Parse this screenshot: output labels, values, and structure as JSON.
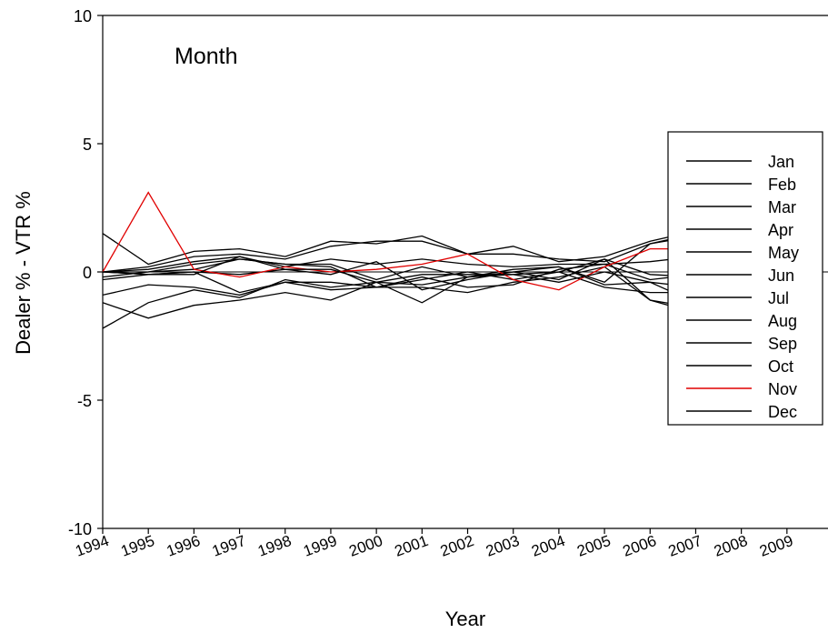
{
  "chart_data": {
    "type": "line",
    "title": "",
    "annotation": "Month",
    "xlabel": "Year",
    "ylabel": "Dealer % - VTR %",
    "xlim": [
      1994,
      2009.9
    ],
    "ylim": [
      -10,
      10
    ],
    "x_ticks": [
      1994,
      1995,
      1996,
      1997,
      1998,
      1999,
      2000,
      2001,
      2002,
      2003,
      2004,
      2005,
      2006,
      2007,
      2008,
      2009
    ],
    "y_ticks": [
      -10,
      -5,
      0,
      5,
      10
    ],
    "grid": false,
    "legend_position": "right",
    "reference_line": 0,
    "x": [
      1994,
      1995,
      1996,
      1997,
      1998,
      1999,
      2000,
      2001,
      2002,
      2003,
      2004,
      2005,
      2006,
      2007
    ],
    "series": [
      {
        "name": "Jan",
        "color": "#000000",
        "values": [
          1.5,
          0.3,
          0.8,
          0.9,
          0.6,
          1.2,
          1.1,
          1.4,
          0.7,
          1.0,
          0.4,
          0.6,
          1.2,
          1.6
        ]
      },
      {
        "name": "Feb",
        "color": "#000000",
        "values": [
          0.0,
          0.2,
          0.6,
          0.7,
          0.5,
          1.0,
          1.2,
          1.2,
          0.7,
          0.7,
          0.5,
          0.4,
          1.1,
          1.5
        ]
      },
      {
        "name": "Mar",
        "color": "#000000",
        "values": [
          0.0,
          0.1,
          0.4,
          0.6,
          0.2,
          0.5,
          0.3,
          0.5,
          0.3,
          0.2,
          0.3,
          0.3,
          0.4,
          0.6
        ]
      },
      {
        "name": "Apr",
        "color": "#000000",
        "values": [
          -0.2,
          0.0,
          0.3,
          0.5,
          0.3,
          0.3,
          -0.3,
          0.2,
          -0.2,
          0.1,
          0.2,
          -0.4,
          1.1,
          1.4
        ]
      },
      {
        "name": "May",
        "color": "#000000",
        "values": [
          -0.9,
          -0.5,
          -0.6,
          -0.9,
          -0.4,
          -0.7,
          -0.6,
          -0.2,
          -0.6,
          -0.5,
          0.1,
          0.3,
          -0.3,
          -0.1
        ]
      },
      {
        "name": "Jun",
        "color": "#000000",
        "values": [
          -2.2,
          -1.2,
          -0.7,
          -1.0,
          -0.3,
          -0.6,
          -0.4,
          -0.5,
          -0.2,
          -0.1,
          0.0,
          -0.6,
          -0.8,
          -0.8
        ]
      },
      {
        "name": "Jul",
        "color": "#000000",
        "values": [
          -1.2,
          -1.8,
          -1.3,
          -1.1,
          -0.8,
          -1.1,
          -0.4,
          -1.2,
          -0.2,
          0.0,
          -0.3,
          0.5,
          -1.1,
          -1.6
        ]
      },
      {
        "name": "Aug",
        "color": "#000000",
        "values": [
          0.0,
          -0.1,
          0.0,
          -0.1,
          0.1,
          -0.1,
          0.4,
          -0.7,
          -0.3,
          0.0,
          0.2,
          -0.5,
          -0.4,
          -1.2
        ]
      },
      {
        "name": "Sep",
        "color": "#000000",
        "values": [
          -0.3,
          -0.1,
          0.0,
          -0.8,
          -0.4,
          -0.4,
          -0.6,
          -0.6,
          -0.8,
          -0.4,
          -0.2,
          0.2,
          -1.1,
          -1.4
        ]
      },
      {
        "name": "Oct",
        "color": "#000000",
        "values": [
          0.0,
          0.0,
          0.1,
          0.5,
          0.3,
          0.2,
          -0.6,
          -0.3,
          0.0,
          -0.3,
          0.0,
          0.5,
          -0.1,
          -0.2
        ]
      },
      {
        "name": "Nov",
        "color": "#e00000",
        "values": [
          0.0,
          3.1,
          0.1,
          -0.2,
          0.2,
          0.0,
          0.1,
          0.3,
          0.7,
          -0.3,
          -0.7,
          0.2,
          0.9,
          0.9
        ]
      },
      {
        "name": "Dec",
        "color": "#000000",
        "values": [
          0.0,
          -0.1,
          -0.1,
          0.6,
          0.1,
          0.1,
          -0.4,
          -0.1,
          -0.1,
          -0.1,
          -0.4,
          0.0,
          -0.4,
          -0.6
        ]
      }
    ]
  }
}
